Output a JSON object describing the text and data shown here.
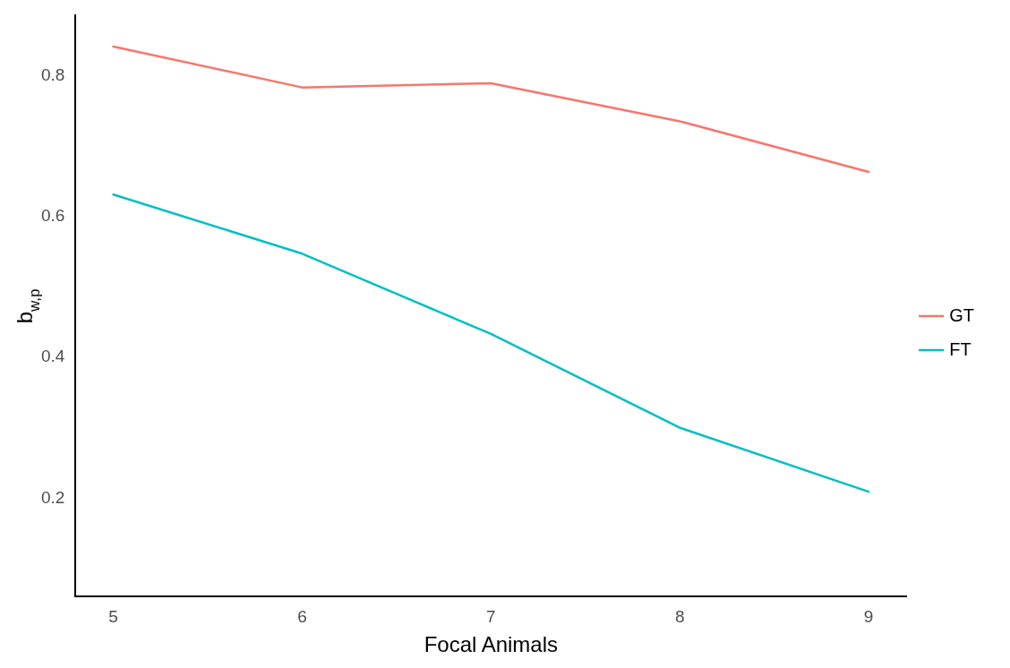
{
  "chart_data": {
    "type": "line",
    "xlabel": "Focal Animals",
    "ylabel": "b$_{w,p}$",
    "x": [
      5,
      6,
      7,
      8,
      9
    ],
    "series": [
      {
        "name": "GT",
        "color": "#f8766d",
        "values": [
          0.841,
          0.783,
          0.789,
          0.735,
          0.663
        ]
      },
      {
        "name": "FT",
        "color": "#00bfc4",
        "values": [
          0.631,
          0.547,
          0.433,
          0.3,
          0.209
        ]
      }
    ],
    "xlim": [
      4.8,
      9.2
    ],
    "ylim": [
      0.06,
      0.885
    ],
    "xticks": [
      5,
      6,
      7,
      8,
      9
    ],
    "yticks": [
      0.2,
      0.4,
      0.6,
      0.8
    ],
    "legend": "right",
    "marker": "none",
    "line_style": "solid"
  }
}
